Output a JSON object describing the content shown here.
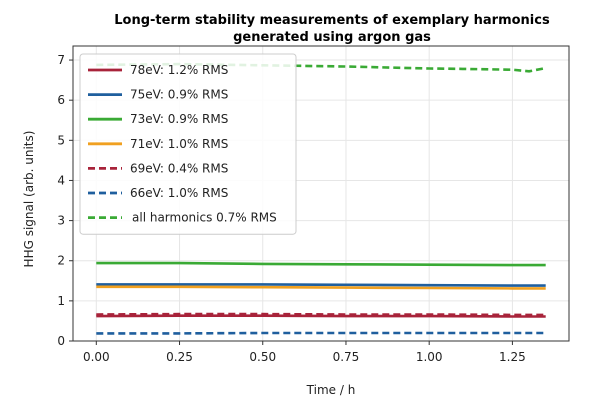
{
  "chart_data": {
    "type": "line",
    "title_lines": [
      "Long-term stability measurements of exemplary harmonics",
      "generated using argon gas"
    ],
    "xlabel": "Time / h",
    "ylabel": "HHG signal (arb. units)",
    "xlim": [
      -0.07,
      1.42
    ],
    "ylim": [
      0,
      7.35
    ],
    "x_ticks": [
      0.0,
      0.25,
      0.5,
      0.75,
      1.0,
      1.25
    ],
    "x_tick_labels": [
      "0.00",
      "0.25",
      "0.50",
      "0.75",
      "1.00",
      "1.25"
    ],
    "y_ticks": [
      0,
      1,
      2,
      3,
      4,
      5,
      6,
      7
    ],
    "y_tick_labels": [
      "0",
      "1",
      "2",
      "3",
      "4",
      "5",
      "6",
      "7"
    ],
    "grid": true,
    "legend_position": "top-left",
    "series": [
      {
        "name": "78eV: 1.2% RMS",
        "color": "#a8233a",
        "style": "solid",
        "x": [
          0.0,
          0.25,
          0.5,
          0.75,
          1.0,
          1.25,
          1.35
        ],
        "y": [
          0.62,
          0.63,
          0.63,
          0.62,
          0.62,
          0.61,
          0.61
        ]
      },
      {
        "name": "75eV: 0.9% RMS",
        "color": "#1f5f9e",
        "style": "solid",
        "x": [
          0.0,
          0.25,
          0.5,
          0.75,
          1.0,
          1.25,
          1.35
        ],
        "y": [
          1.41,
          1.41,
          1.41,
          1.4,
          1.39,
          1.38,
          1.38
        ]
      },
      {
        "name": "73eV: 0.9% RMS",
        "color": "#3aaa35",
        "style": "solid",
        "x": [
          0.0,
          0.25,
          0.5,
          0.75,
          1.0,
          1.25,
          1.35
        ],
        "y": [
          1.94,
          1.94,
          1.92,
          1.91,
          1.9,
          1.89,
          1.89
        ]
      },
      {
        "name": "71eV: 1.0% RMS",
        "color": "#f0a020",
        "style": "solid",
        "x": [
          0.0,
          0.25,
          0.5,
          0.75,
          1.0,
          1.25,
          1.35
        ],
        "y": [
          1.35,
          1.35,
          1.34,
          1.33,
          1.32,
          1.31,
          1.31
        ]
      },
      {
        "name": "69eV: 0.4% RMS",
        "color": "#a8233a",
        "style": "dashed",
        "x": [
          0.0,
          0.25,
          0.5,
          0.75,
          1.0,
          1.25,
          1.35
        ],
        "y": [
          0.66,
          0.67,
          0.67,
          0.66,
          0.66,
          0.65,
          0.65
        ]
      },
      {
        "name": "66eV: 1.0% RMS",
        "color": "#1f5f9e",
        "style": "dashed",
        "x": [
          0.0,
          0.25,
          0.5,
          0.75,
          1.0,
          1.25,
          1.35
        ],
        "y": [
          0.19,
          0.19,
          0.2,
          0.2,
          0.2,
          0.2,
          0.2
        ]
      },
      {
        "name": "all harmonics 0.7% RMS",
        "color": "#3aaa35",
        "style": "dashed",
        "x": [
          0.0,
          0.25,
          0.5,
          0.75,
          1.0,
          1.1,
          1.25,
          1.3,
          1.35
        ],
        "y": [
          6.88,
          6.9,
          6.87,
          6.84,
          6.79,
          6.78,
          6.76,
          6.72,
          6.8
        ]
      }
    ]
  }
}
